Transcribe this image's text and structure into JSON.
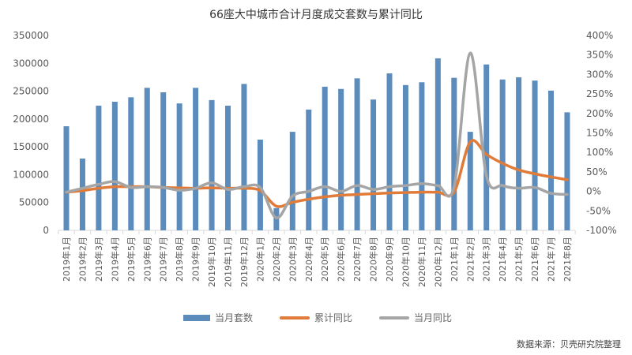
{
  "chart_data": {
    "type": "bar+line",
    "title": "66座大中城市合计月度成交套数与累计同比",
    "categories": [
      "2019年1月",
      "2019年2月",
      "2019年3月",
      "2019年4月",
      "2019年5月",
      "2019年6月",
      "2019年7月",
      "2019年8月",
      "2019年9月",
      "2019年10月",
      "2019年11月",
      "2019年12月",
      "2020年1月",
      "2020年2月",
      "2020年3月",
      "2020年4月",
      "2020年5月",
      "2020年6月",
      "2020年7月",
      "2020年8月",
      "2020年9月",
      "2020年10月",
      "2020年11月",
      "2020年12月",
      "2021年1月",
      "2021年2月",
      "2021年3月",
      "2021年4月",
      "2021年5月",
      "2021年6月",
      "2021年7月",
      "2021年8月"
    ],
    "series": [
      {
        "name": "当月套数",
        "type": "bar",
        "axis": "left",
        "color": "#5b8cbc",
        "values": [
          187000,
          129000,
          224000,
          231000,
          239000,
          256000,
          248000,
          228000,
          256000,
          234000,
          224000,
          263000,
          163000,
          40000,
          177000,
          217000,
          258000,
          254000,
          273000,
          235000,
          282000,
          261000,
          266000,
          309000,
          274000,
          177000,
          298000,
          271000,
          275000,
          269000,
          251000,
          212000
        ]
      },
      {
        "name": "累计同比",
        "type": "line",
        "axis": "right",
        "color": "#e07b39",
        "unit": "%",
        "values": [
          -2,
          2,
          8,
          12,
          12,
          12,
          10,
          9,
          8,
          9,
          8,
          8,
          2,
          -38,
          -28,
          -20,
          -14,
          -10,
          -8,
          -6,
          -4,
          -3,
          -2,
          -2,
          -2,
          127,
          95,
          72,
          55,
          45,
          37,
          30
        ]
      },
      {
        "name": "当月同比",
        "type": "line",
        "axis": "right",
        "color": "#a5a5a5",
        "unit": "%",
        "values": [
          -2,
          8,
          18,
          25,
          10,
          12,
          10,
          3,
          8,
          22,
          5,
          12,
          10,
          -68,
          -12,
          0,
          12,
          0,
          15,
          5,
          12,
          15,
          20,
          15,
          12,
          355,
          40,
          15,
          8,
          10,
          -5,
          -8
        ]
      }
    ],
    "left_axis": {
      "min": 0,
      "max": 350000,
      "ticks": [
        0,
        50000,
        100000,
        150000,
        200000,
        250000,
        300000,
        350000
      ]
    },
    "right_axis": {
      "min": -100,
      "max": 400,
      "ticks": [
        "-100%",
        "-50%",
        "0%",
        "50%",
        "100%",
        "150%",
        "200%",
        "250%",
        "300%",
        "350%",
        "400%"
      ]
    },
    "grid": false,
    "legend_position": "bottom",
    "xlabel": "",
    "ylabel": ""
  },
  "legend": {
    "bar": "当月套数",
    "cum": "累计同比",
    "month": "当月同比"
  },
  "source": "数据来源：贝壳研究院整理"
}
